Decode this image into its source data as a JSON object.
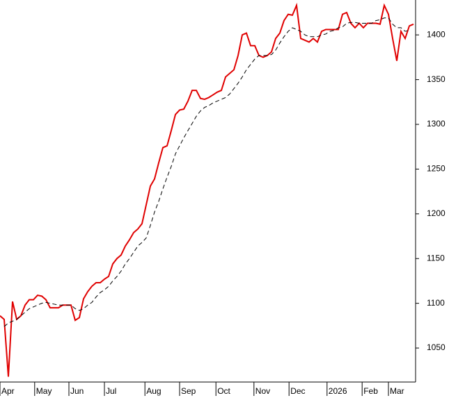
{
  "chart_data": {
    "type": "line",
    "series": [
      {
        "color": "#e00000",
        "dash": false,
        "values": [
          1086,
          1082,
          1018,
          1102,
          1082,
          1086,
          1098,
          1104,
          1104,
          1109,
          1108,
          1104,
          1095,
          1095,
          1095,
          1098,
          1098,
          1098,
          1081,
          1084,
          1105,
          1113,
          1119,
          1123,
          1123,
          1127,
          1130,
          1144,
          1150,
          1154,
          1164,
          1171,
          1179,
          1183,
          1189,
          1210,
          1231,
          1239,
          1257,
          1274,
          1276,
          1293,
          1311,
          1316,
          1317,
          1326,
          1338,
          1338,
          1329,
          1328,
          1330,
          1333,
          1336,
          1338,
          1353,
          1357,
          1361,
          1377,
          1400,
          1402,
          1388,
          1388,
          1377,
          1375,
          1377,
          1381,
          1396,
          1402,
          1416,
          1423,
          1422,
          1433,
          1396,
          1394,
          1392,
          1396,
          1392,
          1404,
          1406,
          1406,
          1406,
          1406,
          1423,
          1425,
          1413,
          1408,
          1413,
          1408,
          1413,
          1413,
          1413,
          1412,
          1433,
          1423,
          1396,
          1371,
          1404,
          1396,
          1410,
          1412
        ]
      },
      {
        "color": "#000000",
        "dash": true,
        "values": [
          null,
          1074,
          1078,
          1080,
          1082,
          1086,
          1090,
          1094,
          1096,
          1098,
          1100,
          1101,
          1100,
          1099,
          1098,
          1098,
          1098,
          1098,
          1094,
          1092,
          1094,
          1098,
          1101,
          1107,
          1112,
          1115,
          1119,
          1125,
          1130,
          1136,
          1144,
          1150,
          1157,
          1164,
          1168,
          1173,
          1187,
          1202,
          1214,
          1228,
          1241,
          1253,
          1267,
          1276,
          1285,
          1293,
          1301,
          1309,
          1315,
          1319,
          1321,
          1324,
          1326,
          1328,
          1330,
          1334,
          1340,
          1346,
          1353,
          1361,
          1367,
          1373,
          1377,
          1377,
          1377,
          1378,
          1383,
          1391,
          1398,
          1404,
          1408,
          1406,
          1404,
          1400,
          1398,
          1398,
          1398,
          1400,
          1401,
          1404,
          1405,
          1408,
          1409,
          1413,
          1414,
          1414,
          1413,
          1413,
          1413,
          1413,
          1416,
          1417,
          1419,
          1419,
          1412,
          1408,
          1408,
          1404,
          1405,
          null
        ]
      }
    ],
    "xlim": [
      0,
      99.5
    ],
    "xticks": [
      {
        "value": 0,
        "label": "Apr"
      },
      {
        "value": 8.3,
        "label": "May"
      },
      {
        "value": 16.5,
        "label": "Jun"
      },
      {
        "value": 25,
        "label": "Jul"
      },
      {
        "value": 34.7,
        "label": "Aug"
      },
      {
        "value": 43,
        "label": "Sep"
      },
      {
        "value": 51.7,
        "label": "Oct"
      },
      {
        "value": 60.8,
        "label": "Nov"
      },
      {
        "value": 69.2,
        "label": "Dec"
      },
      {
        "value": 78.3,
        "label": "2026"
      },
      {
        "value": 86.7,
        "label": "Feb"
      },
      {
        "value": 93,
        "label": "Mar"
      }
    ],
    "ylim": [
      1012,
      1439
    ],
    "yticks": [
      1050,
      1100,
      1150,
      1200,
      1250,
      1300,
      1350,
      1400
    ],
    "grid": false
  }
}
